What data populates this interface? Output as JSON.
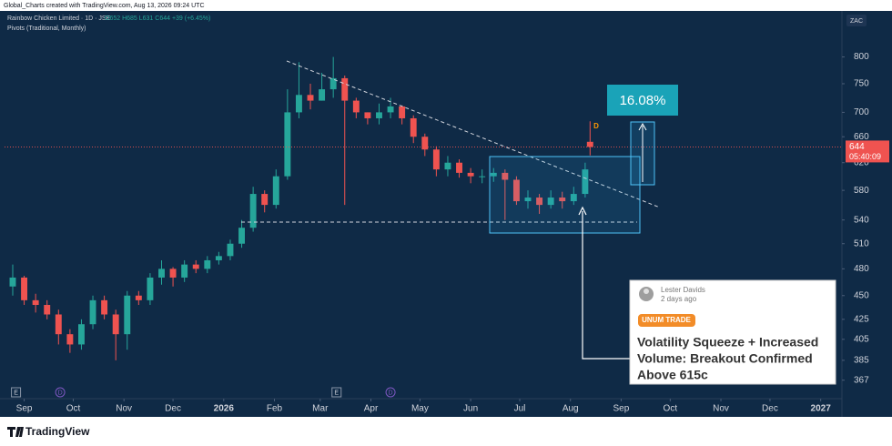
{
  "header": {
    "attribution": "Global_Charts created with TradingView.com, Aug 13, 2026 09:24 UTC",
    "currency": "ZAC"
  },
  "chart_data": {
    "type": "candlestick",
    "title": "Rainbow Chicken Limited · 1D · JSE",
    "legend_values": "O652 H685 L631 C644 +39 (+6.45%)",
    "subtitle": "Pivots (Traditional, Monthly)",
    "up_color": "#26a69a",
    "down_color": "#ef5350",
    "log_scale": true,
    "x": [
      -7,
      0,
      7,
      14,
      21,
      28,
      35,
      42,
      49,
      56,
      63,
      70,
      77,
      84,
      91,
      98,
      105,
      112,
      119,
      126,
      133,
      140,
      147,
      154,
      161,
      168,
      175,
      182,
      189,
      196,
      203,
      210,
      217,
      224,
      231,
      238,
      245,
      252,
      259,
      266,
      273,
      280,
      287,
      294,
      301,
      308,
      315,
      322,
      329,
      336,
      343,
      346
    ],
    "open": [
      460,
      470,
      445,
      440,
      430,
      410,
      400,
      420,
      445,
      430,
      410,
      450,
      445,
      470,
      480,
      470,
      485,
      480,
      490,
      495,
      510,
      530,
      575,
      560,
      600,
      700,
      730,
      720,
      740,
      760,
      720,
      700,
      690,
      700,
      710,
      690,
      660,
      640,
      610,
      620,
      605,
      600,
      600,
      605,
      595,
      565,
      570,
      560,
      570,
      565,
      575,
      652
    ],
    "high": [
      485,
      472,
      452,
      445,
      435,
      415,
      425,
      450,
      450,
      435,
      455,
      455,
      475,
      490,
      482,
      490,
      490,
      495,
      500,
      515,
      540,
      585,
      580,
      610,
      740,
      790,
      750,
      770,
      800,
      765,
      725,
      700,
      715,
      725,
      712,
      695,
      665,
      645,
      630,
      625,
      612,
      610,
      612,
      610,
      600,
      580,
      575,
      580,
      578,
      585,
      620,
      685
    ],
    "low": [
      450,
      440,
      432,
      425,
      400,
      392,
      395,
      415,
      425,
      385,
      395,
      440,
      440,
      462,
      460,
      465,
      475,
      475,
      485,
      490,
      505,
      525,
      550,
      555,
      595,
      690,
      705,
      720,
      725,
      560,
      690,
      680,
      680,
      690,
      680,
      650,
      630,
      600,
      600,
      598,
      590,
      590,
      592,
      540,
      560,
      555,
      548,
      555,
      555,
      560,
      570,
      631
    ],
    "close": [
      470,
      445,
      440,
      430,
      410,
      400,
      420,
      445,
      430,
      410,
      450,
      445,
      470,
      480,
      470,
      485,
      480,
      490,
      495,
      510,
      530,
      575,
      560,
      600,
      700,
      730,
      720,
      740,
      760,
      720,
      700,
      690,
      700,
      710,
      690,
      660,
      640,
      610,
      620,
      605,
      600,
      600,
      605,
      595,
      565,
      570,
      560,
      570,
      565,
      575,
      610,
      644
    ],
    "xlim": [
      -12,
      500
    ],
    "ylim": [
      351,
      888
    ],
    "yticks": [
      367,
      385,
      405,
      425,
      450,
      480,
      510,
      540,
      580,
      620,
      660,
      700,
      750,
      800
    ],
    "xticks": [
      {
        "value": 0,
        "label": "Sep"
      },
      {
        "value": 30,
        "label": "Oct"
      },
      {
        "value": 61,
        "label": "Nov"
      },
      {
        "value": 91,
        "label": "Dec"
      },
      {
        "value": 122,
        "label": "2026"
      },
      {
        "value": 153,
        "label": "Feb"
      },
      {
        "value": 181,
        "label": "Mar"
      },
      {
        "value": 212,
        "label": "Apr"
      },
      {
        "value": 242,
        "label": "May"
      },
      {
        "value": 273,
        "label": "Jun"
      },
      {
        "value": 303,
        "label": "Jul"
      },
      {
        "value": 334,
        "label": "Aug"
      },
      {
        "value": 365,
        "label": "Sep"
      },
      {
        "value": 395,
        "label": "Oct"
      },
      {
        "value": 426,
        "label": "Nov"
      },
      {
        "value": 456,
        "label": "Dec"
      },
      {
        "value": 487,
        "label": "2027"
      }
    ],
    "events": [
      {
        "x": -5,
        "label": "E"
      },
      {
        "x": 22,
        "label": "D"
      },
      {
        "x": 191,
        "label": "E"
      },
      {
        "x": 224,
        "label": "D"
      }
    ],
    "last_price": 644,
    "countdown": "05:40:09",
    "dividend_marker": "D",
    "measure_label": "16.08%"
  },
  "card": {
    "author": "Lester Davids",
    "time": "2 days ago",
    "tag": "UNUM TRADE",
    "headline": [
      "Volatility Squeeze + Increased",
      "Volume: Breakout Confirmed",
      "Above 615c"
    ]
  },
  "footer": {
    "brand": "TradingView"
  }
}
